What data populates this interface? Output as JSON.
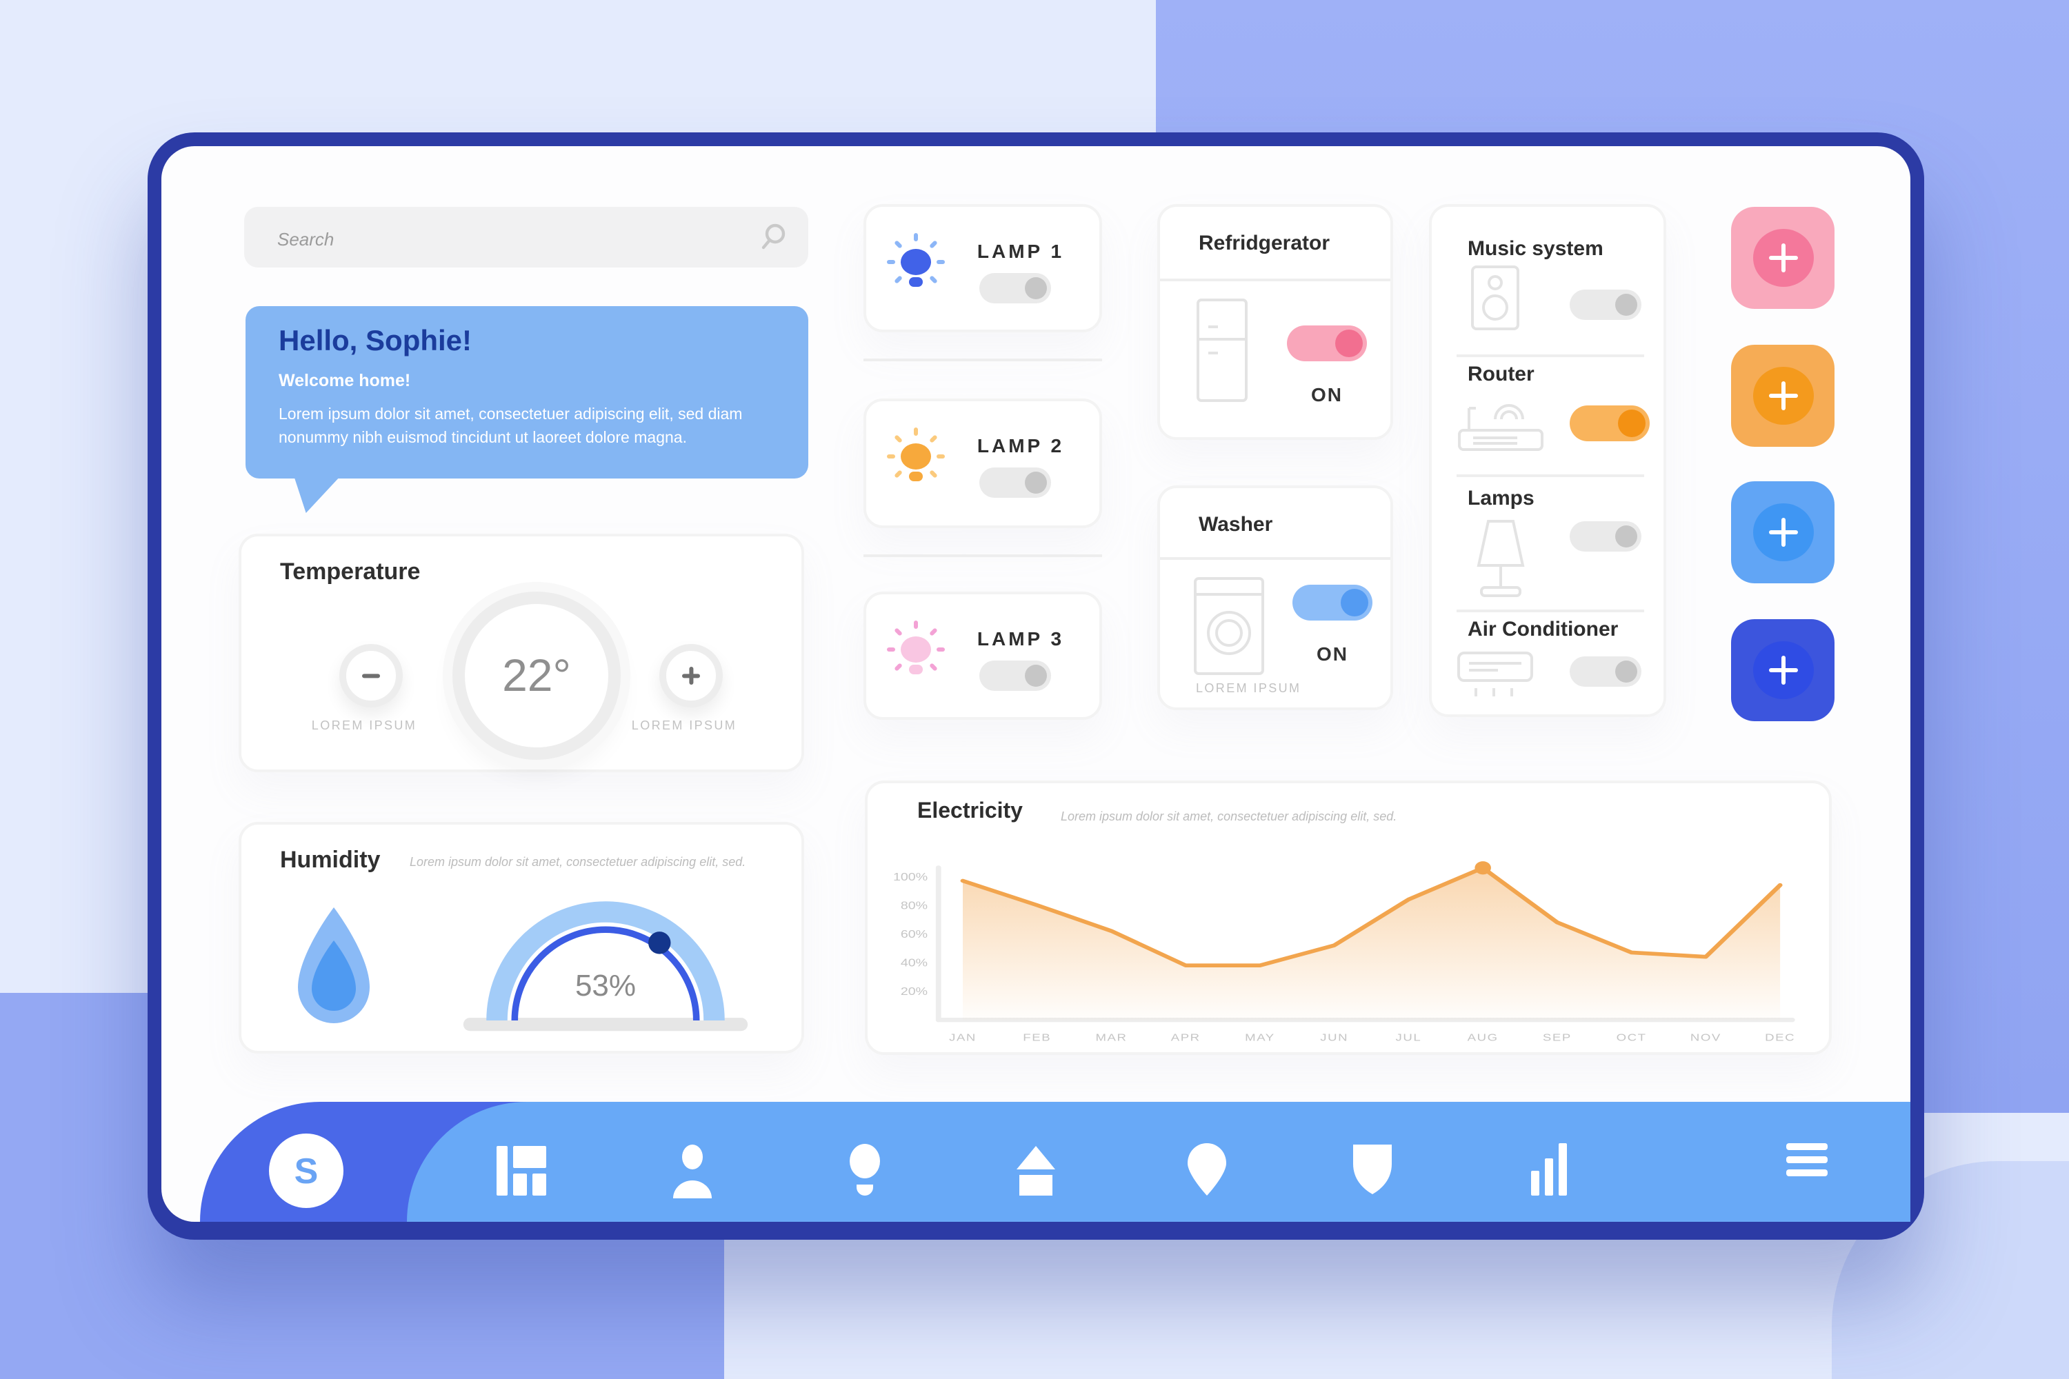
{
  "colors": {
    "background_base": "#e4ebfd",
    "background_accent": "#94a8f3",
    "background_corner": "#cdd9fa",
    "frame": "#2c3ba5",
    "nav_dark": "#4a68e8",
    "nav_light": "#68a9f7",
    "greeting_card": "#84b6f3",
    "greeting_title": "#1b3c9c"
  },
  "search": {
    "placeholder": "Search"
  },
  "greeting": {
    "title": "Hello, Sophie!",
    "subtitle": "Welcome home!",
    "body": "Lorem ipsum dolor sit amet, consectetuer adipiscing elit, sed diam nonummy nibh euismod tincidunt ut laoreet dolore magna."
  },
  "temperature": {
    "title": "Temperature",
    "value": "22°",
    "minus_caption": "LOREM IPSUM",
    "plus_caption": "LOREM IPSUM"
  },
  "humidity": {
    "title": "Humidity",
    "subtitle": "Lorem ipsum dolor sit amet, consectetuer adipiscing elit, sed.",
    "value": "53%",
    "percent": 53,
    "gauge_colors": {
      "band": "#a3ccf8",
      "arc": "#3b5ce4",
      "dot": "#14368c"
    }
  },
  "lamp_cards": [
    {
      "label": "LAMP 1",
      "bulb": "#4162e8",
      "rays": "#8cb6f7",
      "toggle": {
        "on": false
      }
    },
    {
      "label": "LAMP 2",
      "bulb": "#f7a93c",
      "rays": "#fbca7d",
      "toggle": {
        "on": false
      }
    },
    {
      "label": "LAMP 3",
      "bulb": "#f9c6e2",
      "rays": "#f3a2d5",
      "toggle": {
        "on": false
      }
    }
  ],
  "refrigerator": {
    "title": "Refridgerator",
    "status": "ON",
    "toggle": {
      "on": true,
      "track": "#f9a6ba",
      "knob": "#f26f90"
    }
  },
  "washer": {
    "title": "Washer",
    "status": "ON",
    "caption": "LOREM IPSUM",
    "toggle": {
      "on": true,
      "track": "#8dbdf8",
      "knob": "#549bf2"
    }
  },
  "devices": [
    {
      "label": "Music system",
      "toggle": {
        "on": false
      }
    },
    {
      "label": "Router",
      "toggle": {
        "on": true,
        "track": "#f9b45c",
        "knob": "#f39113"
      }
    },
    {
      "label": "Lamps",
      "toggle": {
        "on": false
      }
    },
    {
      "label": "Air Conditioner",
      "toggle": {
        "on": false
      }
    }
  ],
  "toggle_defaults": {
    "track": "#eaeaea",
    "knob": "#c6c6c6"
  },
  "add_buttons": [
    {
      "name": "add-pink",
      "bg": "#f9a9bc",
      "inner": "#f4789b"
    },
    {
      "name": "add-orange",
      "bg": "#f6ac55",
      "inner": "#f49a1d"
    },
    {
      "name": "add-light-blue",
      "bg": "#61a5f5",
      "inner": "#3f96f3"
    },
    {
      "name": "add-royal-blue",
      "bg": "#3c55dd",
      "inner": "#2f4ce4"
    }
  ],
  "chart_data": {
    "type": "area",
    "title": "Electricity",
    "subtitle": "Lorem ipsum dolor sit amet, consectetuer adipiscing elit, sed.",
    "x": [
      "JAN",
      "FEB",
      "MAR",
      "APR",
      "MAY",
      "JUN",
      "JUL",
      "AUG",
      "SEP",
      "OCT",
      "NOV",
      "DEC"
    ],
    "values": [
      97,
      80,
      62,
      38,
      38,
      52,
      84,
      106,
      68,
      47,
      44,
      94
    ],
    "unit": "%",
    "y_tick_values": [
      100,
      80,
      60,
      40,
      20
    ],
    "ylim": [
      0,
      110
    ],
    "grid": false,
    "legend": "none",
    "line_color": "#f2a54e",
    "marker": {
      "month": "AUG",
      "value": 106
    }
  },
  "nav": {
    "logo": "S",
    "items": [
      "dashboard",
      "profile",
      "lights",
      "home",
      "location",
      "security",
      "stats",
      "menu"
    ]
  }
}
